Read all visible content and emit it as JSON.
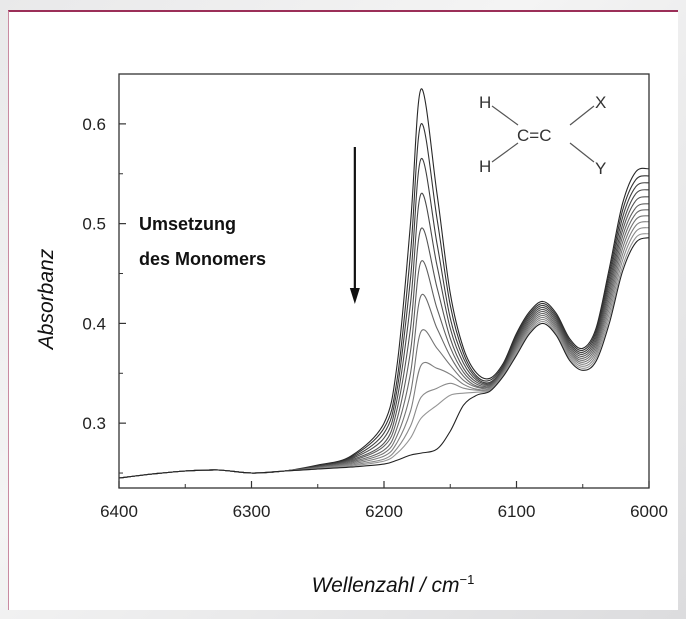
{
  "chart_data": {
    "type": "line",
    "title": "",
    "xlabel": "Wellenzahl / cm",
    "xlabel_superscript": "−1",
    "ylabel": "Absorbanz",
    "xlim": [
      6400,
      6000
    ],
    "ylim": [
      0.235,
      0.65
    ],
    "x_reversed": true,
    "xticks": [
      6400,
      6300,
      6200,
      6100,
      6000
    ],
    "yticks": [
      0.3,
      0.4,
      0.5,
      0.6
    ],
    "ytick_labels": [
      "0.3",
      "0.4",
      "0.5",
      "0.6"
    ],
    "grid": false,
    "legend": "none",
    "annotation": {
      "lines": [
        "Umsetzung",
        "des Monomers"
      ],
      "arrow": "down",
      "arrow_x": 6222
    },
    "molecule": {
      "atoms": [
        "H",
        "H",
        "C=C",
        "X",
        "Y"
      ]
    },
    "series_count": 12,
    "x": [
      6400,
      6375,
      6350,
      6325,
      6300,
      6275,
      6250,
      6225,
      6200,
      6190,
      6180,
      6172,
      6160,
      6150,
      6140,
      6130,
      6120,
      6110,
      6100,
      6090,
      6080,
      6070,
      6060,
      6050,
      6040,
      6030,
      6020,
      6010,
      6000
    ],
    "series": [
      {
        "values": [
          0.245,
          0.249,
          0.252,
          0.253,
          0.25,
          0.252,
          0.258,
          0.267,
          0.3,
          0.36,
          0.5,
          0.635,
          0.53,
          0.43,
          0.375,
          0.35,
          0.345,
          0.36,
          0.39,
          0.412,
          0.422,
          0.41,
          0.385,
          0.375,
          0.395,
          0.455,
          0.52,
          0.552,
          0.555
        ]
      },
      {
        "values": [
          0.245,
          0.249,
          0.252,
          0.253,
          0.25,
          0.252,
          0.257,
          0.266,
          0.295,
          0.345,
          0.47,
          0.6,
          0.505,
          0.418,
          0.37,
          0.347,
          0.343,
          0.358,
          0.388,
          0.41,
          0.42,
          0.408,
          0.383,
          0.373,
          0.392,
          0.45,
          0.513,
          0.544,
          0.548
        ]
      },
      {
        "values": [
          0.245,
          0.249,
          0.252,
          0.253,
          0.25,
          0.252,
          0.257,
          0.265,
          0.29,
          0.335,
          0.445,
          0.565,
          0.48,
          0.405,
          0.365,
          0.345,
          0.341,
          0.356,
          0.386,
          0.408,
          0.418,
          0.406,
          0.381,
          0.371,
          0.389,
          0.445,
          0.506,
          0.537,
          0.541
        ]
      },
      {
        "values": [
          0.245,
          0.249,
          0.252,
          0.253,
          0.25,
          0.252,
          0.256,
          0.264,
          0.285,
          0.325,
          0.42,
          0.53,
          0.458,
          0.395,
          0.36,
          0.343,
          0.34,
          0.355,
          0.384,
          0.406,
          0.416,
          0.404,
          0.379,
          0.369,
          0.386,
          0.44,
          0.499,
          0.53,
          0.534
        ]
      },
      {
        "values": [
          0.245,
          0.249,
          0.252,
          0.253,
          0.25,
          0.252,
          0.256,
          0.263,
          0.28,
          0.315,
          0.395,
          0.495,
          0.436,
          0.385,
          0.355,
          0.341,
          0.339,
          0.354,
          0.382,
          0.404,
          0.414,
          0.402,
          0.377,
          0.367,
          0.383,
          0.435,
          0.493,
          0.523,
          0.527
        ]
      },
      {
        "values": [
          0.245,
          0.249,
          0.252,
          0.253,
          0.25,
          0.252,
          0.256,
          0.262,
          0.277,
          0.305,
          0.372,
          0.462,
          0.415,
          0.376,
          0.351,
          0.339,
          0.338,
          0.353,
          0.38,
          0.402,
          0.412,
          0.4,
          0.375,
          0.365,
          0.38,
          0.43,
          0.487,
          0.516,
          0.52
        ]
      },
      {
        "values": [
          0.245,
          0.249,
          0.252,
          0.253,
          0.25,
          0.252,
          0.255,
          0.261,
          0.273,
          0.296,
          0.35,
          0.428,
          0.395,
          0.367,
          0.347,
          0.337,
          0.337,
          0.352,
          0.378,
          0.4,
          0.41,
          0.398,
          0.373,
          0.363,
          0.377,
          0.425,
          0.481,
          0.51,
          0.514
        ]
      },
      {
        "values": [
          0.245,
          0.249,
          0.252,
          0.253,
          0.25,
          0.252,
          0.255,
          0.26,
          0.27,
          0.288,
          0.33,
          0.392,
          0.375,
          0.358,
          0.343,
          0.336,
          0.336,
          0.351,
          0.376,
          0.398,
          0.408,
          0.396,
          0.371,
          0.361,
          0.374,
          0.42,
          0.475,
          0.504,
          0.508
        ]
      },
      {
        "values": [
          0.245,
          0.249,
          0.252,
          0.253,
          0.25,
          0.252,
          0.255,
          0.259,
          0.267,
          0.281,
          0.312,
          0.358,
          0.355,
          0.349,
          0.339,
          0.334,
          0.335,
          0.35,
          0.374,
          0.396,
          0.406,
          0.394,
          0.369,
          0.359,
          0.371,
          0.415,
          0.469,
          0.498,
          0.502
        ]
      },
      {
        "values": [
          0.245,
          0.249,
          0.252,
          0.253,
          0.25,
          0.252,
          0.254,
          0.258,
          0.264,
          0.275,
          0.297,
          0.326,
          0.335,
          0.34,
          0.335,
          0.333,
          0.334,
          0.349,
          0.372,
          0.394,
          0.404,
          0.392,
          0.367,
          0.357,
          0.368,
          0.41,
          0.463,
          0.492,
          0.496
        ]
      },
      {
        "values": [
          0.245,
          0.249,
          0.252,
          0.253,
          0.25,
          0.252,
          0.254,
          0.257,
          0.262,
          0.27,
          0.285,
          0.305,
          0.318,
          0.328,
          0.33,
          0.331,
          0.333,
          0.348,
          0.37,
          0.392,
          0.402,
          0.39,
          0.365,
          0.355,
          0.365,
          0.405,
          0.457,
          0.486,
          0.49
        ]
      },
      {
        "values": [
          0.245,
          0.249,
          0.252,
          0.253,
          0.25,
          0.252,
          0.254,
          0.256,
          0.259,
          0.263,
          0.268,
          0.27,
          0.274,
          0.292,
          0.318,
          0.328,
          0.332,
          0.347,
          0.368,
          0.39,
          0.4,
          0.388,
          0.363,
          0.353,
          0.362,
          0.4,
          0.452,
          0.481,
          0.486
        ]
      }
    ]
  }
}
